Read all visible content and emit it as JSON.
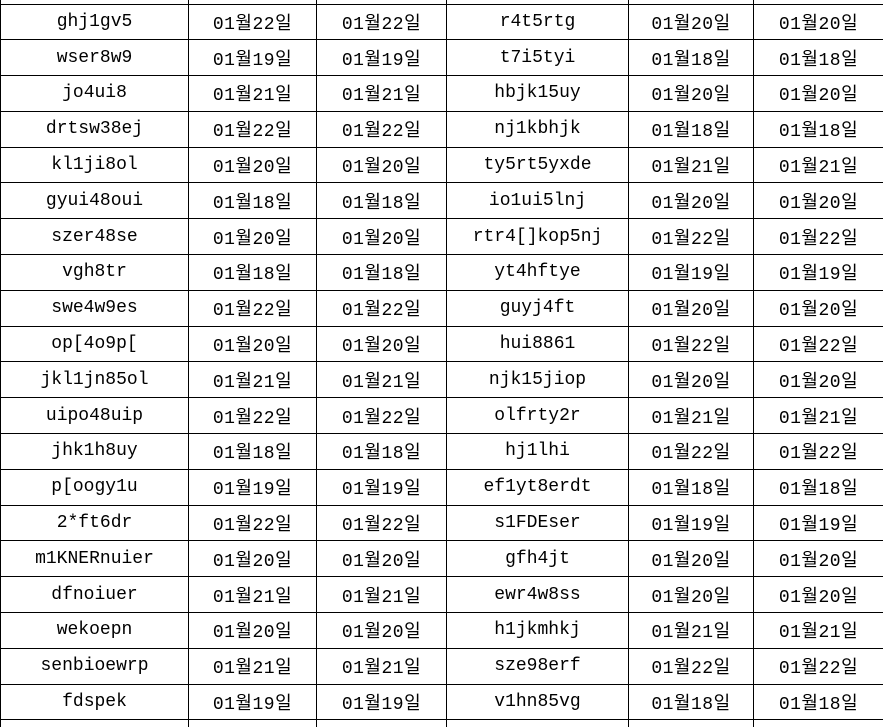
{
  "table": {
    "description": "spreadsheet grid of id codes and duplicate date columns",
    "grid_color": "#000000",
    "text_color": "#000000",
    "background_color": "#ffffff",
    "date_month_suffix": "월",
    "date_day_suffix": "일",
    "column_kinds": [
      "id-cell-left",
      "date-cell-left-1",
      "date-cell-left-2",
      "id-cell-right",
      "date-cell-right-1",
      "date-cell-right-2"
    ],
    "rows": [
      [
        "ghj1gv5",
        "01월22일",
        "01월22일",
        "r4t5rtg",
        "01월20일",
        "01월20일"
      ],
      [
        "wser8w9",
        "01월19일",
        "01월19일",
        "t7i5tyi",
        "01월18일",
        "01월18일"
      ],
      [
        "jo4ui8",
        "01월21일",
        "01월21일",
        "hbjk15uy",
        "01월20일",
        "01월20일"
      ],
      [
        "drtsw38ej",
        "01월22일",
        "01월22일",
        "nj1kbhjk",
        "01월18일",
        "01월18일"
      ],
      [
        "kl1ji8ol",
        "01월20일",
        "01월20일",
        "ty5rt5yxde",
        "01월21일",
        "01월21일"
      ],
      [
        "gyui48oui",
        "01월18일",
        "01월18일",
        "io1ui5lnj",
        "01월20일",
        "01월20일"
      ],
      [
        "szer48se",
        "01월20일",
        "01월20일",
        "rtr4[]kop5nj",
        "01월22일",
        "01월22일"
      ],
      [
        "vgh8tr",
        "01월18일",
        "01월18일",
        "yt4hftye",
        "01월19일",
        "01월19일"
      ],
      [
        "swe4w9es",
        "01월22일",
        "01월22일",
        "guyj4ft",
        "01월20일",
        "01월20일"
      ],
      [
        "op[4o9p[",
        "01월20일",
        "01월20일",
        "hui8861",
        "01월22일",
        "01월22일"
      ],
      [
        "jkl1jn85ol",
        "01월21일",
        "01월21일",
        "njk15jiop",
        "01월20일",
        "01월20일"
      ],
      [
        "uipo48uip",
        "01월22일",
        "01월22일",
        "olfrty2r",
        "01월21일",
        "01월21일"
      ],
      [
        "jhk1h8uy",
        "01월18일",
        "01월18일",
        "hj1lhi",
        "01월22일",
        "01월22일"
      ],
      [
        "p[oogy1u",
        "01월19일",
        "01월19일",
        "ef1yt8erdt",
        "01월18일",
        "01월18일"
      ],
      [
        "2*ft6dr",
        "01월22일",
        "01월22일",
        "s1FDEser",
        "01월19일",
        "01월19일"
      ],
      [
        "m1KNERnuier",
        "01월20일",
        "01월20일",
        "gfh4jt",
        "01월20일",
        "01월20일"
      ],
      [
        "dfnoiuer",
        "01월21일",
        "01월21일",
        "ewr4w8ss",
        "01월20일",
        "01월20일"
      ],
      [
        "wekoepn",
        "01월20일",
        "01월20일",
        "h1jkmhkj",
        "01월21일",
        "01월21일"
      ],
      [
        "senbioewrp",
        "01월21일",
        "01월21일",
        "sze98erf",
        "01월22일",
        "01월22일"
      ],
      [
        "fdspek",
        "01월19일",
        "01월19일",
        "v1hn85vg",
        "01월18일",
        "01월18일"
      ]
    ]
  }
}
